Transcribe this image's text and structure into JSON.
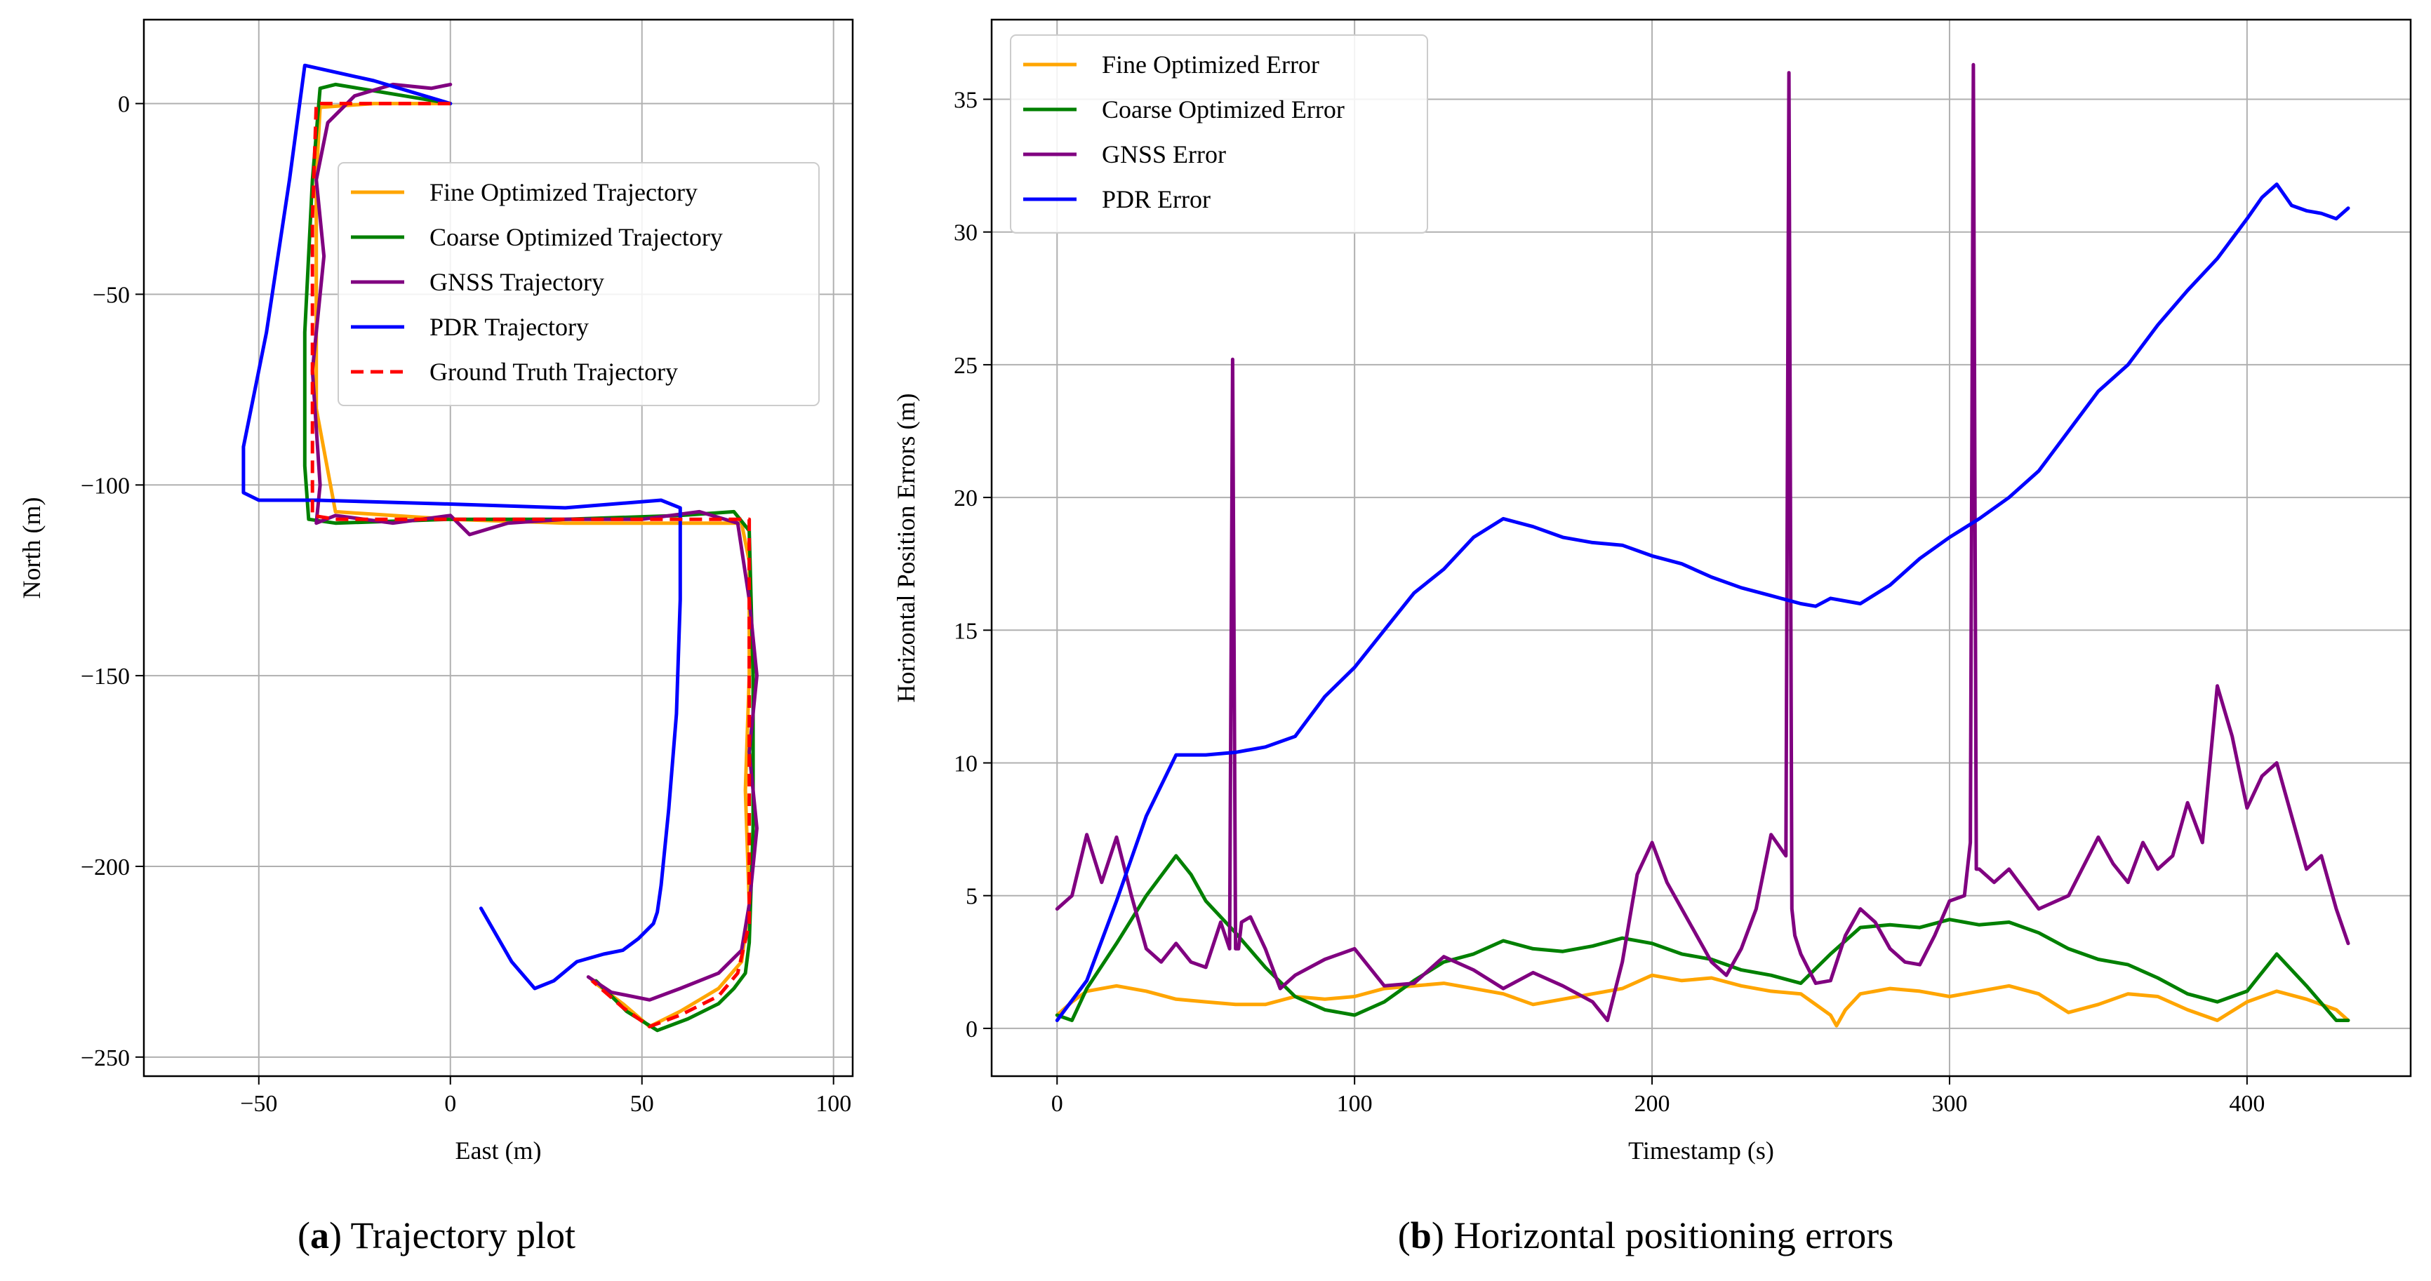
{
  "chart_data": [
    {
      "type": "line",
      "panel": "a",
      "xlabel": "East (m)",
      "ylabel": "North (m)",
      "xlim": [
        -80,
        105
      ],
      "ylim": [
        -255,
        22
      ],
      "xticks": [
        -50,
        0,
        50,
        100
      ],
      "xtick_labels": [
        "−50",
        "0",
        "50",
        "100"
      ],
      "yticks": [
        0,
        -50,
        -100,
        -150,
        -200,
        -250
      ],
      "ytick_labels": [
        "0",
        "−50",
        "−100",
        "−150",
        "−200",
        "−250"
      ],
      "grid": true,
      "legend_position": "upper-center",
      "series": [
        {
          "name": "Fine Optimized Trajectory",
          "color": "#ffa500",
          "dash": false,
          "x": [
            0,
            -20,
            -34,
            -35,
            -35,
            -35,
            -30,
            0,
            30,
            60,
            76,
            78,
            78,
            77,
            78,
            76,
            70,
            60,
            52,
            45,
            37
          ],
          "y": [
            0,
            0,
            -1,
            -20,
            -50,
            -80,
            -107,
            -109,
            -110,
            -110,
            -110,
            -120,
            -150,
            -180,
            -210,
            -225,
            -232,
            -238,
            -242,
            -236,
            -230
          ]
        },
        {
          "name": "Coarse Optimized Trajectory",
          "color": "#008000",
          "dash": false,
          "x": [
            0,
            -30,
            -34,
            -36,
            -38,
            -38,
            -37,
            -30,
            0,
            30,
            60,
            74,
            78,
            79,
            79,
            78,
            77,
            74,
            70,
            62,
            54,
            46,
            38
          ],
          "y": [
            0,
            5,
            4,
            -20,
            -60,
            -95,
            -109,
            -110,
            -109,
            -109,
            -108,
            -107,
            -112,
            -150,
            -190,
            -220,
            -228,
            -232,
            -236,
            -240,
            -243,
            -238,
            -230
          ]
        },
        {
          "name": "GNSS Trajectory",
          "color": "#800080",
          "dash": false,
          "x": [
            0,
            -5,
            -15,
            -25,
            -32,
            -35,
            -33,
            -36,
            -34,
            -35,
            -30,
            -15,
            0,
            5,
            15,
            30,
            50,
            65,
            75,
            78,
            80,
            78,
            80,
            78,
            76,
            70,
            60,
            52,
            42,
            36
          ],
          "y": [
            5,
            4,
            5,
            2,
            -5,
            -20,
            -40,
            -70,
            -100,
            -110,
            -108,
            -110,
            -108,
            -113,
            -110,
            -109,
            -109,
            -107,
            -110,
            -130,
            -150,
            -170,
            -190,
            -210,
            -222,
            -228,
            -232,
            -235,
            -233,
            -229
          ]
        },
        {
          "name": "PDR Trajectory",
          "color": "#0000ff",
          "dash": false,
          "x": [
            0,
            -20,
            -38,
            -42,
            -48,
            -54,
            -54,
            -50,
            -35,
            0,
            30,
            55,
            60,
            60,
            59,
            57,
            55,
            54,
            53,
            49,
            45,
            40,
            33,
            27,
            22,
            16,
            8
          ],
          "y": [
            0,
            6,
            10,
            -20,
            -60,
            -90,
            -102,
            -104,
            -104,
            -105,
            -106,
            -104,
            -106,
            -130,
            -160,
            -185,
            -205,
            -212,
            -215,
            -219,
            -222,
            -223,
            -225,
            -230,
            -232,
            -225,
            -211
          ]
        },
        {
          "name": "Ground Truth Trajectory",
          "color": "#ff0000",
          "dash": true,
          "x": [
            0,
            -35,
            -36,
            -36,
            -36,
            -30,
            0,
            30,
            60,
            78,
            78,
            78,
            78,
            75,
            70,
            60,
            52,
            45,
            37
          ],
          "y": [
            0,
            0,
            -30,
            -70,
            -108,
            -109,
            -109,
            -109,
            -109,
            -109,
            -140,
            -180,
            -215,
            -228,
            -234,
            -239,
            -242,
            -237,
            -230
          ]
        }
      ]
    },
    {
      "type": "line",
      "panel": "b",
      "xlabel": "Timestamp (s)",
      "ylabel": "Horizontal Position Errors (m)",
      "xlim": [
        -22,
        455
      ],
      "ylim": [
        -1.8,
        38
      ],
      "xticks": [
        0,
        100,
        200,
        300,
        400
      ],
      "xtick_labels": [
        "0",
        "100",
        "200",
        "300",
        "400"
      ],
      "yticks": [
        0,
        5,
        10,
        15,
        20,
        25,
        30,
        35
      ],
      "ytick_labels": [
        "0",
        "5",
        "10",
        "15",
        "20",
        "25",
        "30",
        "35"
      ],
      "grid": true,
      "legend_position": "upper-left",
      "series": [
        {
          "name": "Fine Optimized Error",
          "color": "#ffa500",
          "dash": false,
          "x": [
            0,
            5,
            10,
            20,
            30,
            40,
            50,
            60,
            70,
            80,
            90,
            100,
            110,
            120,
            130,
            140,
            150,
            160,
            170,
            180,
            190,
            200,
            210,
            220,
            230,
            240,
            250,
            255,
            260,
            262,
            265,
            270,
            280,
            290,
            300,
            310,
            320,
            330,
            340,
            350,
            360,
            370,
            380,
            390,
            400,
            410,
            420,
            430,
            434
          ],
          "y": [
            0.5,
            1.0,
            1.4,
            1.6,
            1.4,
            1.1,
            1.0,
            0.9,
            0.9,
            1.2,
            1.1,
            1.2,
            1.5,
            1.6,
            1.7,
            1.5,
            1.3,
            0.9,
            1.1,
            1.3,
            1.5,
            2.0,
            1.8,
            1.9,
            1.6,
            1.4,
            1.3,
            0.9,
            0.5,
            0.1,
            0.7,
            1.3,
            1.5,
            1.4,
            1.2,
            1.4,
            1.6,
            1.3,
            0.6,
            0.9,
            1.3,
            1.2,
            0.7,
            0.3,
            1.0,
            1.4,
            1.1,
            0.7,
            0.3
          ]
        },
        {
          "name": "Coarse Optimized Error",
          "color": "#008000",
          "dash": false,
          "x": [
            0,
            5,
            10,
            20,
            30,
            40,
            45,
            50,
            60,
            70,
            80,
            90,
            100,
            110,
            120,
            130,
            140,
            150,
            160,
            170,
            180,
            190,
            200,
            210,
            220,
            230,
            240,
            250,
            260,
            270,
            280,
            290,
            300,
            310,
            320,
            330,
            340,
            350,
            360,
            370,
            380,
            390,
            400,
            410,
            420,
            430,
            434
          ],
          "y": [
            0.5,
            0.3,
            1.5,
            3.2,
            5.0,
            6.5,
            5.8,
            4.8,
            3.6,
            2.3,
            1.2,
            0.7,
            0.5,
            1.0,
            1.8,
            2.5,
            2.8,
            3.3,
            3.0,
            2.9,
            3.1,
            3.4,
            3.2,
            2.8,
            2.6,
            2.2,
            2.0,
            1.7,
            2.8,
            3.8,
            3.9,
            3.8,
            4.1,
            3.9,
            4.0,
            3.6,
            3.0,
            2.6,
            2.4,
            1.9,
            1.3,
            1.0,
            1.4,
            2.8,
            1.6,
            0.3,
            0.3
          ]
        },
        {
          "name": "GNSS Error",
          "color": "#800080",
          "dash": false,
          "x": [
            0,
            5,
            10,
            15,
            20,
            25,
            30,
            35,
            40,
            45,
            50,
            55,
            58,
            59,
            60,
            61,
            62,
            65,
            70,
            75,
            80,
            90,
            100,
            110,
            120,
            130,
            140,
            150,
            160,
            170,
            180,
            185,
            190,
            195,
            200,
            205,
            210,
            215,
            220,
            225,
            230,
            235,
            240,
            245,
            246,
            247,
            248,
            250,
            255,
            260,
            265,
            270,
            275,
            280,
            285,
            290,
            295,
            300,
            305,
            307,
            308,
            309,
            310,
            315,
            320,
            330,
            340,
            350,
            355,
            360,
            365,
            370,
            375,
            380,
            385,
            390,
            395,
            400,
            405,
            410,
            415,
            420,
            425,
            430,
            434
          ],
          "y": [
            4.5,
            5.0,
            7.3,
            5.5,
            7.2,
            5.0,
            3.0,
            2.5,
            3.2,
            2.5,
            2.3,
            4.0,
            3.0,
            25.2,
            3.0,
            3.0,
            4.0,
            4.2,
            3.0,
            1.5,
            2.0,
            2.6,
            3.0,
            1.6,
            1.7,
            2.7,
            2.2,
            1.5,
            2.1,
            1.6,
            1.0,
            0.3,
            2.5,
            5.8,
            7.0,
            5.5,
            4.5,
            3.5,
            2.5,
            2.0,
            3.0,
            4.5,
            7.3,
            6.5,
            36.0,
            4.5,
            3.5,
            2.8,
            1.7,
            1.8,
            3.5,
            4.5,
            4.0,
            3.0,
            2.5,
            2.4,
            3.5,
            4.8,
            5.0,
            7.0,
            36.3,
            6.0,
            6.0,
            5.5,
            6.0,
            4.5,
            5.0,
            7.2,
            6.2,
            5.5,
            7.0,
            6.0,
            6.5,
            8.5,
            7.0,
            12.9,
            11.0,
            8.3,
            9.5,
            10.0,
            8.0,
            6.0,
            6.5,
            4.5,
            3.2
          ]
        },
        {
          "name": "PDR Error",
          "color": "#0000ff",
          "dash": false,
          "x": [
            0,
            10,
            20,
            30,
            40,
            50,
            60,
            70,
            80,
            90,
            100,
            110,
            120,
            130,
            140,
            150,
            160,
            170,
            180,
            190,
            200,
            210,
            220,
            230,
            240,
            250,
            255,
            260,
            270,
            280,
            290,
            300,
            310,
            320,
            330,
            340,
            350,
            360,
            370,
            380,
            390,
            400,
            405,
            410,
            415,
            420,
            425,
            430,
            434
          ],
          "y": [
            0.3,
            1.8,
            4.8,
            8.0,
            10.3,
            10.3,
            10.4,
            10.6,
            11.0,
            12.5,
            13.6,
            15.0,
            16.4,
            17.3,
            18.5,
            19.2,
            18.9,
            18.5,
            18.3,
            18.2,
            17.8,
            17.5,
            17.0,
            16.6,
            16.3,
            16.0,
            15.9,
            16.2,
            16.0,
            16.7,
            17.7,
            18.5,
            19.2,
            20.0,
            21.0,
            22.5,
            24.0,
            25.0,
            26.5,
            27.8,
            29.0,
            30.5,
            31.3,
            31.8,
            31.0,
            30.8,
            30.7,
            30.5,
            30.9
          ]
        }
      ]
    }
  ],
  "captions": {
    "a_tag": "a",
    "a_text": "Trajectory plot",
    "b_tag": "b",
    "b_text": "Horizontal positioning errors"
  }
}
